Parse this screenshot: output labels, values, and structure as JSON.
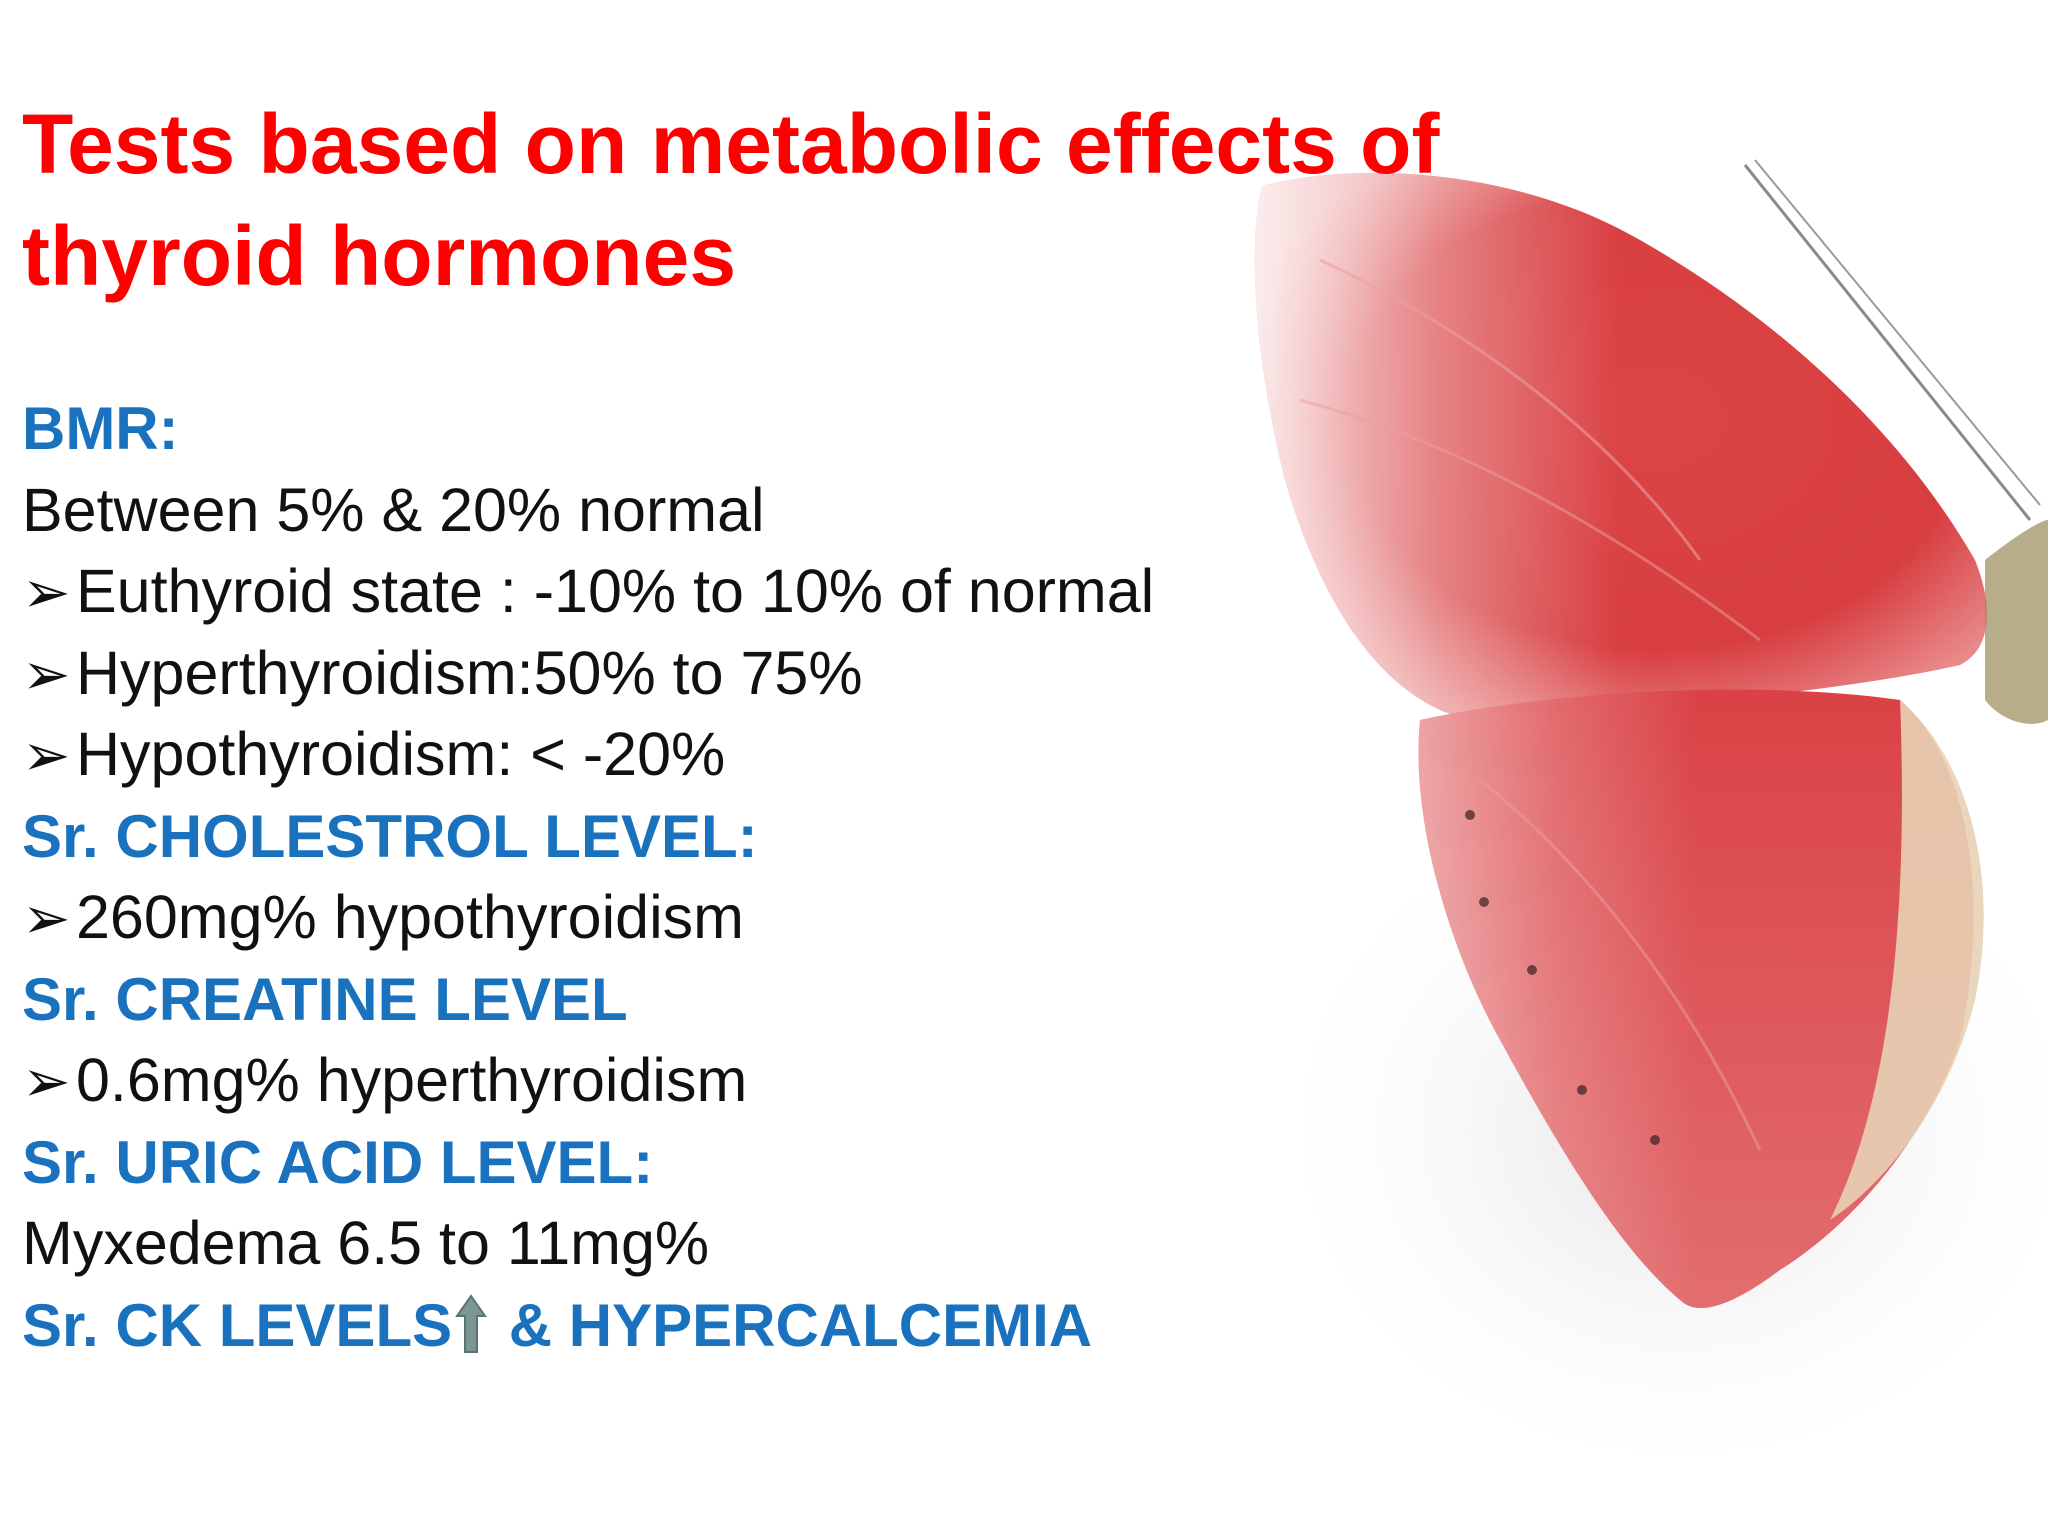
{
  "colors": {
    "title": "#FF0000",
    "heading": "#1A72BE",
    "body_text": "#111111",
    "wing_red": "#D93A3C",
    "arrow": "#7C9694"
  },
  "title": {
    "line1": "Tests based on metabolic effects of",
    "line2": "thyroid hormones"
  },
  "background_image": {
    "icon": "red-butterfly-image"
  },
  "bullet_icon": "➢",
  "sections": {
    "bmr": {
      "heading": "BMR:",
      "text": "Between 5% & 20% normal",
      "bullets": [
        "Euthyroid state : -10% to 10% of normal",
        "Hyperthyroidism:50% to 75%",
        "Hypothyroidism: < -20%"
      ]
    },
    "cholesterol": {
      "heading": "Sr. CHOLESTROL LEVEL:",
      "bullets": [
        "260mg% hypothyroidism"
      ]
    },
    "creatine": {
      "heading": "Sr. CREATINE LEVEL",
      "bullets": [
        "0.6mg% hyperthyroidism"
      ]
    },
    "uric_acid": {
      "heading": "Sr. URIC ACID LEVEL:",
      "text": "Myxedema 6.5 to 11mg%"
    },
    "ck": {
      "heading_part1": "Sr. CK LEVELS",
      "arrow_icon": "up-arrow-icon",
      "heading_part2": " & HYPERCALCEMIA"
    }
  }
}
